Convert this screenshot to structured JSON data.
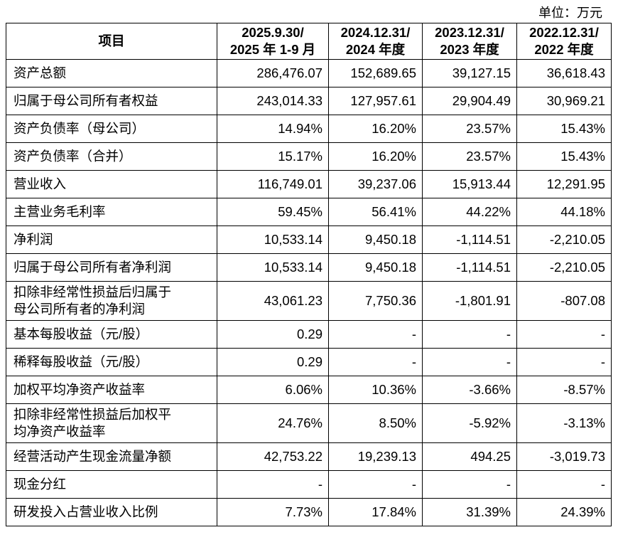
{
  "unit": "单位：万元",
  "table": {
    "header": [
      [
        "项目"
      ],
      [
        "2025.9.30/",
        "2025 年 1-9 月"
      ],
      [
        "2024.12.31/",
        "2024 年度"
      ],
      [
        "2023.12.31/",
        "2023 年度"
      ],
      [
        "2022.12.31/",
        "2022 年度"
      ]
    ],
    "rows": [
      [
        [
          "资产总额"
        ],
        "286,476.07",
        "152,689.65",
        "39,127.15",
        "36,618.43"
      ],
      [
        [
          "归属于母公司所有者权益"
        ],
        "243,014.33",
        "127,957.61",
        "29,904.49",
        "30,969.21"
      ],
      [
        [
          "资产负债率（母公司）"
        ],
        "14.94%",
        "16.20%",
        "23.57%",
        "15.43%"
      ],
      [
        [
          "资产负债率（合并）"
        ],
        "15.17%",
        "16.20%",
        "23.57%",
        "15.43%"
      ],
      [
        [
          "营业收入"
        ],
        "116,749.01",
        "39,237.06",
        "15,913.44",
        "12,291.95"
      ],
      [
        [
          "主营业务毛利率"
        ],
        "59.45%",
        "56.41%",
        "44.22%",
        "44.18%"
      ],
      [
        [
          "净利润"
        ],
        "10,533.14",
        "9,450.18",
        "-1,114.51",
        "-2,210.05"
      ],
      [
        [
          "归属于母公司所有者净利润"
        ],
        "10,533.14",
        "9,450.18",
        "-1,114.51",
        "-2,210.05"
      ],
      [
        [
          "扣除非经常性损益后归属于",
          "母公司所有者的净利润"
        ],
        "43,061.23",
        "7,750.36",
        "-1,801.91",
        "-807.08"
      ],
      [
        [
          "基本每股收益（元/股）"
        ],
        "0.29",
        "-",
        "-",
        "-"
      ],
      [
        [
          "稀释每股收益（元/股）"
        ],
        "0.29",
        "-",
        "-",
        "-"
      ],
      [
        [
          "加权平均净资产收益率"
        ],
        "6.06%",
        "10.36%",
        "-3.66%",
        "-8.57%"
      ],
      [
        [
          "扣除非经常性损益后加权平",
          "均净资产收益率"
        ],
        "24.76%",
        "8.50%",
        "-5.92%",
        "-3.13%"
      ],
      [
        [
          "经营活动产生现金流量净额"
        ],
        "42,753.22",
        "19,239.13",
        "494.25",
        "-3,019.73"
      ],
      [
        [
          "现金分红"
        ],
        "-",
        "-",
        "-",
        "-"
      ],
      [
        [
          "研发投入占营业收入比例"
        ],
        "7.73%",
        "17.84%",
        "31.39%",
        "24.39%"
      ]
    ]
  }
}
